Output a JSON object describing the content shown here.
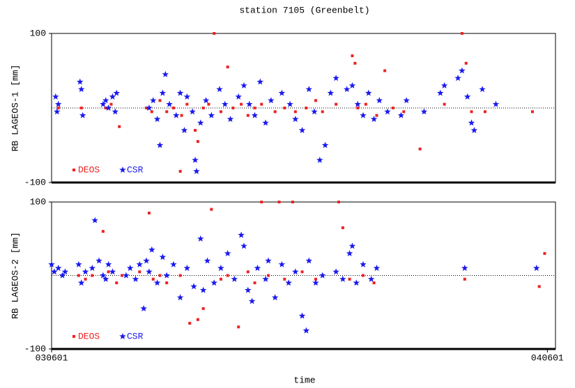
{
  "chart_data": [
    {
      "type": "scatter",
      "title": "station 7105 (Greenbelt)",
      "ylabel": "RB LAGEOS-1 [mm]",
      "xlim": [
        0,
        372
      ],
      "ylim": [
        -100,
        100
      ],
      "yticks": [
        -100,
        100
      ],
      "zero_line": true,
      "legend": "lower left",
      "series": [
        {
          "name": "DEOS",
          "color": "#ee2222",
          "marker": "square",
          "x": [
            5,
            22,
            40,
            44,
            50,
            70,
            74,
            80,
            85,
            90,
            95,
            96,
            100,
            106,
            108,
            112,
            116,
            120,
            125,
            130,
            134,
            140,
            145,
            150,
            155,
            165,
            172,
            180,
            188,
            195,
            200,
            210,
            222,
            224,
            226,
            232,
            240,
            246,
            252,
            260,
            272,
            290,
            303,
            306,
            310,
            320,
            355
          ],
          "values": [
            0,
            0,
            0,
            5,
            -25,
            0,
            -5,
            10,
            -5,
            0,
            -85,
            -10,
            5,
            -30,
            -45,
            0,
            5,
            100,
            -5,
            55,
            0,
            5,
            -10,
            0,
            5,
            -5,
            0,
            -5,
            0,
            10,
            -5,
            5,
            70,
            60,
            0,
            5,
            -10,
            50,
            0,
            -5,
            -55,
            5,
            100,
            60,
            -5,
            -5,
            -5
          ]
        },
        {
          "name": "CSR",
          "color": "#1a1aee",
          "marker": "star",
          "x": [
            3,
            4,
            5,
            21,
            22,
            23,
            38,
            40,
            42,
            45,
            47,
            48,
            72,
            75,
            78,
            80,
            82,
            84,
            87,
            92,
            95,
            98,
            100,
            104,
            106,
            107,
            110,
            114,
            118,
            124,
            128,
            132,
            138,
            142,
            146,
            150,
            154,
            158,
            162,
            170,
            176,
            180,
            185,
            190,
            194,
            198,
            202,
            206,
            210,
            218,
            222,
            226,
            230,
            234,
            238,
            242,
            248,
            258,
            262,
            275,
            287,
            290,
            300,
            303,
            307,
            310,
            312,
            318,
            328
          ],
          "values": [
            15,
            -5,
            5,
            35,
            25,
            -10,
            5,
            10,
            0,
            15,
            -5,
            20,
            0,
            10,
            -15,
            -50,
            20,
            45,
            5,
            -10,
            20,
            -30,
            15,
            -5,
            -70,
            -85,
            -20,
            10,
            -10,
            25,
            5,
            -15,
            15,
            30,
            5,
            -10,
            35,
            -20,
            10,
            20,
            5,
            -15,
            -30,
            25,
            -5,
            -70,
            -50,
            20,
            40,
            25,
            30,
            5,
            -10,
            20,
            -15,
            10,
            -5,
            -10,
            10,
            -5,
            20,
            30,
            40,
            50,
            15,
            -20,
            -30,
            25,
            5
          ]
        }
      ]
    },
    {
      "type": "scatter",
      "ylabel": "RB LAGEOS-2 [mm]",
      "xlabel": "time",
      "xlim": [
        0,
        372
      ],
      "xticks": [
        {
          "value": 0,
          "label": "030601"
        },
        {
          "value": 366,
          "label": "040601"
        }
      ],
      "ylim": [
        -100,
        100
      ],
      "yticks": [
        -100,
        100
      ],
      "zero_line": true,
      "legend": "lower left",
      "series": [
        {
          "name": "DEOS",
          "color": "#ee2222",
          "marker": "square",
          "x": [
            2,
            20,
            25,
            30,
            38,
            42,
            48,
            52,
            65,
            72,
            75,
            80,
            85,
            95,
            102,
            108,
            112,
            118,
            125,
            130,
            138,
            145,
            150,
            155,
            160,
            168,
            172,
            178,
            185,
            195,
            200,
            212,
            215,
            220,
            230,
            238,
            305,
            360,
            364
          ],
          "values": [
            5,
            0,
            -5,
            0,
            60,
            5,
            -10,
            0,
            5,
            85,
            -5,
            0,
            -10,
            0,
            -65,
            -60,
            -45,
            90,
            -5,
            0,
            -70,
            5,
            -10,
            100,
            0,
            100,
            -5,
            100,
            5,
            -5,
            0,
            100,
            65,
            -5,
            0,
            -10,
            -5,
            -15,
            30
          ]
        },
        {
          "name": "CSR",
          "color": "#1a1aee",
          "marker": "star",
          "x": [
            0,
            2,
            5,
            8,
            10,
            20,
            22,
            25,
            30,
            32,
            35,
            38,
            40,
            42,
            45,
            55,
            58,
            62,
            65,
            68,
            70,
            72,
            74,
            78,
            82,
            85,
            90,
            95,
            100,
            105,
            110,
            112,
            115,
            120,
            125,
            130,
            135,
            140,
            142,
            145,
            148,
            152,
            158,
            160,
            165,
            170,
            175,
            180,
            185,
            188,
            190,
            195,
            200,
            210,
            215,
            220,
            222,
            225,
            230,
            236,
            240,
            305,
            358
          ],
          "values": [
            15,
            5,
            10,
            0,
            5,
            15,
            -10,
            5,
            10,
            75,
            20,
            0,
            -5,
            15,
            5,
            0,
            10,
            -5,
            15,
            -45,
            20,
            5,
            35,
            -10,
            25,
            0,
            15,
            -30,
            10,
            -15,
            50,
            -20,
            20,
            -10,
            10,
            30,
            -5,
            55,
            40,
            -20,
            -35,
            10,
            -5,
            20,
            -30,
            15,
            -10,
            5,
            -55,
            -75,
            20,
            -10,
            0,
            5,
            -5,
            30,
            40,
            -10,
            15,
            -5,
            10,
            10,
            10
          ]
        }
      ]
    }
  ]
}
